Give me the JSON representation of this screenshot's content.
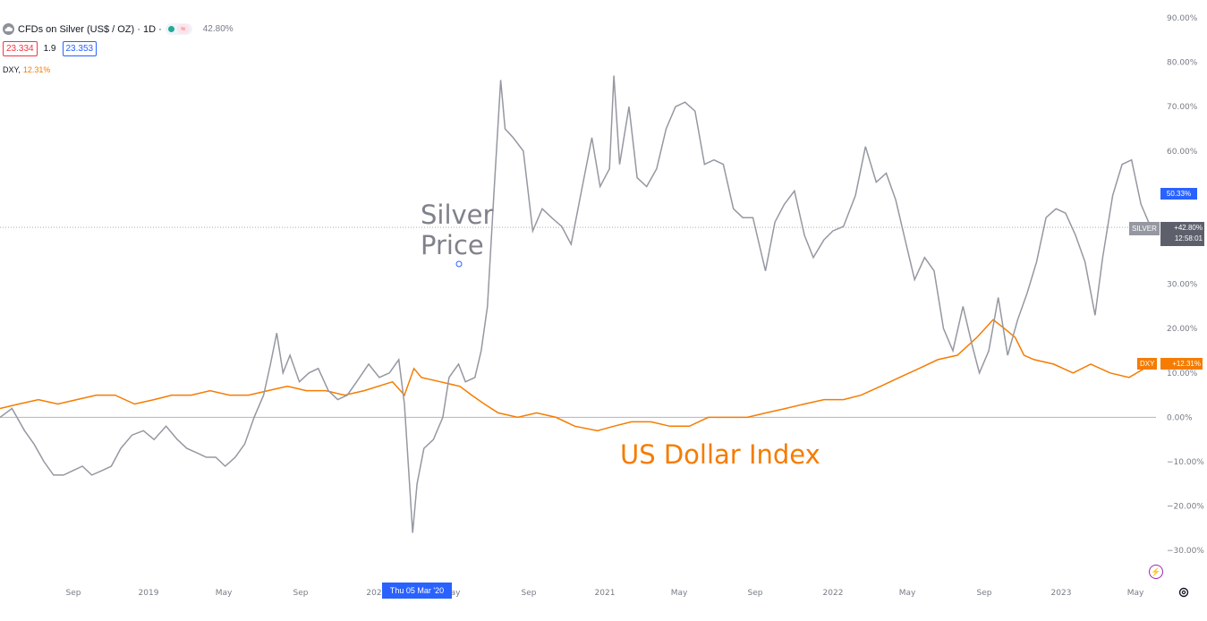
{
  "header": {
    "title": "CFDs on Silver (US$ / OZ) · 1D ·",
    "symbol_icon": "cloud-icon",
    "status_dot_color": "#22ab94",
    "status_icon": "≈",
    "change_pct": "42.80%",
    "sell_price": "23.334",
    "spread": "1.9",
    "buy_price": "23.353"
  },
  "compare": {
    "name": "DXY,",
    "value": "12.31%"
  },
  "annotations": {
    "silver_line1": "Silver",
    "silver_line2": "Price",
    "dxy_label": "US Dollar Index"
  },
  "badges": {
    "blue_pct": "50.33%",
    "silver_name": "SILVER",
    "silver_pct": "+42.80%",
    "countdown": "12:58:01",
    "dxy_name": "DXY",
    "dxy_pct": "+12.31%"
  },
  "crosshair_date": "Thu 05 Mar '20",
  "colors": {
    "silver": "#9598a1",
    "dxy": "#f57c00",
    "accent": "#2962ff",
    "zero_line": "#b2b5be"
  },
  "chart_data": {
    "type": "line",
    "y_unit": "percent change",
    "y_ticks": [
      "90.00%",
      "80.00%",
      "70.00%",
      "60.00%",
      "50.00%",
      "40.00%",
      "30.00%",
      "20.00%",
      "10.00%",
      "0.00%",
      "−10.00%",
      "−20.00%",
      "−30.00%"
    ],
    "x_ticks": [
      "Sep",
      "2019",
      "May",
      "Sep",
      "202",
      "ay",
      "Sep",
      "2021",
      "May",
      "Sep",
      "2022",
      "May",
      "Sep",
      "2023",
      "May"
    ],
    "ylim": [
      -30,
      90
    ],
    "series": [
      {
        "name": "SILVER",
        "points": [
          [
            "2018-06-01",
            0
          ],
          [
            "2018-06-20",
            2
          ],
          [
            "2018-07-10",
            -3
          ],
          [
            "2018-07-25",
            -6
          ],
          [
            "2018-08-10",
            -10
          ],
          [
            "2018-08-25",
            -13
          ],
          [
            "2018-09-10",
            -13
          ],
          [
            "2018-09-25",
            -12
          ],
          [
            "2018-10-10",
            -11
          ],
          [
            "2018-10-25",
            -13
          ],
          [
            "2018-11-10",
            -12
          ],
          [
            "2018-11-25",
            -11
          ],
          [
            "2018-12-10",
            -7
          ],
          [
            "2018-12-28",
            -4
          ],
          [
            "2019-01-15",
            -3
          ],
          [
            "2019-02-01",
            -5
          ],
          [
            "2019-02-20",
            -2
          ],
          [
            "2019-03-10",
            -5
          ],
          [
            "2019-03-25",
            -7
          ],
          [
            "2019-04-10",
            -8
          ],
          [
            "2019-04-25",
            -9
          ],
          [
            "2019-05-10",
            -9
          ],
          [
            "2019-05-25",
            -11
          ],
          [
            "2019-06-10",
            -9
          ],
          [
            "2019-06-25",
            -6
          ],
          [
            "2019-07-10",
            0
          ],
          [
            "2019-07-25",
            5
          ],
          [
            "2019-08-05",
            12
          ],
          [
            "2019-08-15",
            19
          ],
          [
            "2019-08-25",
            10
          ],
          [
            "2019-09-05",
            14
          ],
          [
            "2019-09-20",
            8
          ],
          [
            "2019-10-05",
            10
          ],
          [
            "2019-10-20",
            11
          ],
          [
            "2019-11-05",
            6
          ],
          [
            "2019-11-20",
            4
          ],
          [
            "2019-12-05",
            5
          ],
          [
            "2019-12-20",
            8
          ],
          [
            "2020-01-08",
            12
          ],
          [
            "2020-01-25",
            9
          ],
          [
            "2020-02-10",
            10
          ],
          [
            "2020-02-25",
            13
          ],
          [
            "2020-03-05",
            3
          ],
          [
            "2020-03-10",
            -8
          ],
          [
            "2020-03-18",
            -26
          ],
          [
            "2020-03-25",
            -15
          ],
          [
            "2020-04-05",
            -7
          ],
          [
            "2020-04-20",
            -5
          ],
          [
            "2020-05-05",
            0
          ],
          [
            "2020-05-15",
            9
          ],
          [
            "2020-05-30",
            12
          ],
          [
            "2020-06-10",
            8
          ],
          [
            "2020-06-25",
            9
          ],
          [
            "2020-07-05",
            15
          ],
          [
            "2020-07-15",
            25
          ],
          [
            "2020-07-25",
            50
          ],
          [
            "2020-08-05",
            76
          ],
          [
            "2020-08-12",
            65
          ],
          [
            "2020-08-25",
            63
          ],
          [
            "2020-09-10",
            60
          ],
          [
            "2020-09-25",
            42
          ],
          [
            "2020-10-10",
            47
          ],
          [
            "2020-10-25",
            45
          ],
          [
            "2020-11-10",
            43
          ],
          [
            "2020-11-25",
            39
          ],
          [
            "2020-12-10",
            50
          ],
          [
            "2020-12-28",
            63
          ],
          [
            "2021-01-10",
            52
          ],
          [
            "2021-01-25",
            56
          ],
          [
            "2021-02-01",
            77
          ],
          [
            "2021-02-10",
            57
          ],
          [
            "2021-02-25",
            70
          ],
          [
            "2021-03-10",
            54
          ],
          [
            "2021-03-25",
            52
          ],
          [
            "2021-04-10",
            56
          ],
          [
            "2021-04-25",
            65
          ],
          [
            "2021-05-10",
            70
          ],
          [
            "2021-05-25",
            71
          ],
          [
            "2021-06-10",
            69
          ],
          [
            "2021-06-25",
            57
          ],
          [
            "2021-07-10",
            58
          ],
          [
            "2021-07-25",
            57
          ],
          [
            "2021-08-10",
            47
          ],
          [
            "2021-08-25",
            45
          ],
          [
            "2021-09-10",
            45
          ],
          [
            "2021-09-30",
            33
          ],
          [
            "2021-10-15",
            44
          ],
          [
            "2021-10-30",
            48
          ],
          [
            "2021-11-15",
            51
          ],
          [
            "2021-12-01",
            41
          ],
          [
            "2021-12-15",
            36
          ],
          [
            "2022-01-01",
            40
          ],
          [
            "2022-01-15",
            42
          ],
          [
            "2022-02-01",
            43
          ],
          [
            "2022-02-20",
            50
          ],
          [
            "2022-03-08",
            61
          ],
          [
            "2022-03-25",
            53
          ],
          [
            "2022-04-10",
            55
          ],
          [
            "2022-04-25",
            49
          ],
          [
            "2022-05-10",
            40
          ],
          [
            "2022-05-25",
            31
          ],
          [
            "2022-06-10",
            36
          ],
          [
            "2022-06-25",
            33
          ],
          [
            "2022-07-10",
            20
          ],
          [
            "2022-07-25",
            15
          ],
          [
            "2022-08-10",
            25
          ],
          [
            "2022-08-25",
            16
          ],
          [
            "2022-09-05",
            10
          ],
          [
            "2022-09-20",
            15
          ],
          [
            "2022-10-05",
            27
          ],
          [
            "2022-10-20",
            14
          ],
          [
            "2022-11-05",
            22
          ],
          [
            "2022-11-20",
            28
          ],
          [
            "2022-12-05",
            35
          ],
          [
            "2022-12-20",
            45
          ],
          [
            "2023-01-05",
            47
          ],
          [
            "2023-01-20",
            46
          ],
          [
            "2023-02-05",
            41
          ],
          [
            "2023-02-20",
            35
          ],
          [
            "2023-03-08",
            23
          ],
          [
            "2023-03-20",
            36
          ],
          [
            "2023-04-05",
            50
          ],
          [
            "2023-04-20",
            57
          ],
          [
            "2023-05-05",
            58
          ],
          [
            "2023-05-20",
            48
          ],
          [
            "2023-06-01",
            44
          ],
          [
            "2023-06-10",
            42.8
          ]
        ]
      },
      {
        "name": "DXY",
        "points": [
          [
            "2018-06-01",
            2
          ],
          [
            "2018-07-01",
            3
          ],
          [
            "2018-08-01",
            4
          ],
          [
            "2018-09-01",
            3
          ],
          [
            "2018-10-01",
            4
          ],
          [
            "2018-11-01",
            5
          ],
          [
            "2018-12-01",
            5
          ],
          [
            "2019-01-01",
            3
          ],
          [
            "2019-02-01",
            4
          ],
          [
            "2019-03-01",
            5
          ],
          [
            "2019-04-01",
            5
          ],
          [
            "2019-05-01",
            6
          ],
          [
            "2019-06-01",
            5
          ],
          [
            "2019-07-01",
            5
          ],
          [
            "2019-08-01",
            6
          ],
          [
            "2019-09-01",
            7
          ],
          [
            "2019-10-01",
            6
          ],
          [
            "2019-11-01",
            6
          ],
          [
            "2019-12-01",
            5
          ],
          [
            "2020-01-01",
            6
          ],
          [
            "2020-02-15",
            8
          ],
          [
            "2020-03-05",
            5
          ],
          [
            "2020-03-20",
            11
          ],
          [
            "2020-04-01",
            9
          ],
          [
            "2020-05-01",
            8
          ],
          [
            "2020-06-01",
            7
          ],
          [
            "2020-06-20",
            5
          ],
          [
            "2020-07-10",
            3
          ],
          [
            "2020-08-01",
            1
          ],
          [
            "2020-09-01",
            0
          ],
          [
            "2020-10-01",
            1
          ],
          [
            "2020-11-01",
            0
          ],
          [
            "2020-12-01",
            -2
          ],
          [
            "2021-01-06",
            -3
          ],
          [
            "2021-02-01",
            -2
          ],
          [
            "2021-03-01",
            -1
          ],
          [
            "2021-04-01",
            -1
          ],
          [
            "2021-05-01",
            -2
          ],
          [
            "2021-06-01",
            -2
          ],
          [
            "2021-07-01",
            0
          ],
          [
            "2021-08-01",
            0
          ],
          [
            "2021-09-01",
            0
          ],
          [
            "2021-10-01",
            1
          ],
          [
            "2021-11-01",
            2
          ],
          [
            "2021-12-01",
            3
          ],
          [
            "2022-01-01",
            4
          ],
          [
            "2022-02-01",
            4
          ],
          [
            "2022-03-01",
            5
          ],
          [
            "2022-04-01",
            7
          ],
          [
            "2022-05-01",
            9
          ],
          [
            "2022-06-01",
            11
          ],
          [
            "2022-07-01",
            13
          ],
          [
            "2022-08-01",
            14
          ],
          [
            "2022-09-01",
            18
          ],
          [
            "2022-09-27",
            22
          ],
          [
            "2022-10-15",
            20
          ],
          [
            "2022-11-01",
            18
          ],
          [
            "2022-11-15",
            14
          ],
          [
            "2022-12-01",
            13
          ],
          [
            "2023-01-01",
            12
          ],
          [
            "2023-02-01",
            10
          ],
          [
            "2023-03-01",
            12
          ],
          [
            "2023-04-01",
            10
          ],
          [
            "2023-05-01",
            9
          ],
          [
            "2023-06-10",
            12.31
          ]
        ]
      }
    ],
    "grid": false,
    "legend": "top-left"
  }
}
